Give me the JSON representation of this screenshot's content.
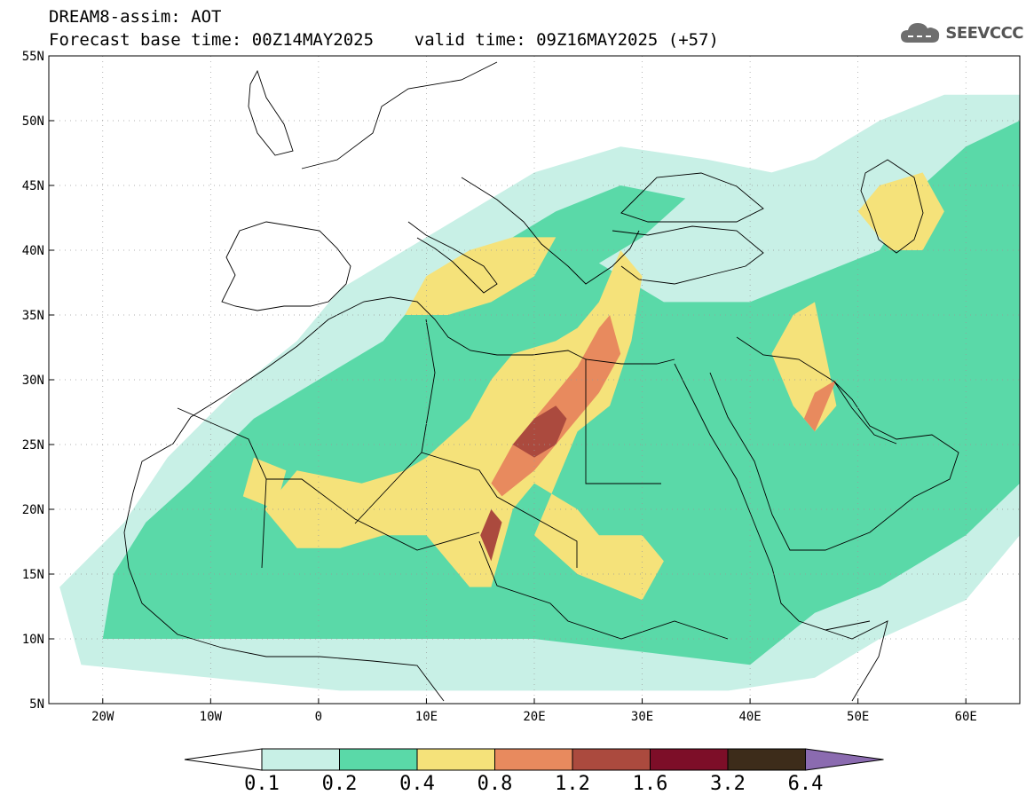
{
  "header": {
    "title_line1": "DREAM8-assim: AOT",
    "title_line2": "Forecast base time: 00Z14MAY2025    valid time: 09Z16MAY2025 (+57)"
  },
  "logo": {
    "text": "SEEVCCC",
    "icon": "cloud-icon"
  },
  "map": {
    "projection": "lat-lon",
    "lon_range": [
      -25,
      65
    ],
    "lat_range": [
      5,
      55
    ],
    "grid": "dotted",
    "x_ticks": [
      {
        "lon": -20,
        "label": "20W"
      },
      {
        "lon": -10,
        "label": "10W"
      },
      {
        "lon": 0,
        "label": "0"
      },
      {
        "lon": 10,
        "label": "10E"
      },
      {
        "lon": 20,
        "label": "20E"
      },
      {
        "lon": 30,
        "label": "30E"
      },
      {
        "lon": 40,
        "label": "40E"
      },
      {
        "lon": 50,
        "label": "50E"
      },
      {
        "lon": 60,
        "label": "60E"
      }
    ],
    "y_ticks": [
      {
        "lat": 5,
        "label": "5N"
      },
      {
        "lat": 10,
        "label": "10N"
      },
      {
        "lat": 15,
        "label": "15N"
      },
      {
        "lat": 20,
        "label": "20N"
      },
      {
        "lat": 25,
        "label": "25N"
      },
      {
        "lat": 30,
        "label": "30N"
      },
      {
        "lat": 35,
        "label": "35N"
      },
      {
        "lat": 40,
        "label": "40N"
      },
      {
        "lat": 45,
        "label": "45N"
      },
      {
        "lat": 50,
        "label": "50N"
      },
      {
        "lat": 55,
        "label": "55N"
      }
    ],
    "field": "AOT",
    "dust_regions": [
      {
        "level": 1,
        "polygon": [
          [
            -22,
            8
          ],
          [
            -24,
            14
          ],
          [
            -18,
            19
          ],
          [
            -14,
            24
          ],
          [
            -8,
            29
          ],
          [
            -2,
            33
          ],
          [
            2,
            37
          ],
          [
            8,
            40
          ],
          [
            14,
            43
          ],
          [
            20,
            46
          ],
          [
            28,
            48
          ],
          [
            36,
            47
          ],
          [
            42,
            46
          ],
          [
            46,
            47
          ],
          [
            52,
            50
          ],
          [
            58,
            52
          ],
          [
            65,
            52
          ],
          [
            65,
            18
          ],
          [
            60,
            13
          ],
          [
            52,
            10
          ],
          [
            46,
            7
          ],
          [
            38,
            6
          ],
          [
            20,
            6
          ],
          [
            2,
            6
          ],
          [
            -10,
            7
          ]
        ]
      },
      {
        "level": 2,
        "polygon": [
          [
            -20,
            10
          ],
          [
            -19,
            15
          ],
          [
            -16,
            19
          ],
          [
            -12,
            22
          ],
          [
            -6,
            27
          ],
          [
            0,
            30
          ],
          [
            6,
            33
          ],
          [
            10,
            37
          ],
          [
            16,
            40
          ],
          [
            22,
            43
          ],
          [
            28,
            45
          ],
          [
            34,
            44
          ],
          [
            30,
            41
          ],
          [
            26,
            39
          ],
          [
            32,
            36
          ],
          [
            40,
            36
          ],
          [
            46,
            38
          ],
          [
            52,
            40
          ],
          [
            56,
            45
          ],
          [
            60,
            48
          ],
          [
            65,
            50
          ],
          [
            65,
            22
          ],
          [
            60,
            18
          ],
          [
            52,
            14
          ],
          [
            46,
            12
          ],
          [
            40,
            8
          ],
          [
            30,
            9
          ],
          [
            20,
            10
          ],
          [
            10,
            10
          ],
          [
            0,
            10
          ],
          [
            -12,
            10
          ]
        ]
      },
      {
        "level": 3,
        "polygon": [
          [
            -5,
            20
          ],
          [
            -2,
            23
          ],
          [
            4,
            22
          ],
          [
            8,
            23
          ],
          [
            10,
            24
          ],
          [
            14,
            27
          ],
          [
            16,
            30
          ],
          [
            18,
            32
          ],
          [
            22,
            33
          ],
          [
            24,
            34
          ],
          [
            26,
            36
          ],
          [
            28,
            40
          ],
          [
            30,
            38
          ],
          [
            29,
            33
          ],
          [
            27,
            28
          ],
          [
            24,
            26
          ],
          [
            22,
            22
          ],
          [
            20,
            18
          ],
          [
            24,
            15
          ],
          [
            30,
            13
          ],
          [
            32,
            16
          ],
          [
            30,
            18
          ],
          [
            26,
            18
          ],
          [
            24,
            20
          ],
          [
            20,
            22
          ],
          [
            18,
            20
          ],
          [
            16,
            14
          ],
          [
            14,
            14
          ],
          [
            10,
            18
          ],
          [
            6,
            18
          ],
          [
            2,
            17
          ],
          [
            -2,
            17
          ]
        ]
      },
      {
        "level": 3,
        "polygon": [
          [
            8,
            35
          ],
          [
            10,
            38
          ],
          [
            14,
            40
          ],
          [
            18,
            41
          ],
          [
            22,
            41
          ],
          [
            20,
            38
          ],
          [
            16,
            36
          ],
          [
            12,
            35
          ]
        ]
      },
      {
        "level": 3,
        "polygon": [
          [
            42,
            32
          ],
          [
            44,
            35
          ],
          [
            46,
            36
          ],
          [
            47,
            32
          ],
          [
            48,
            28
          ],
          [
            46,
            26
          ],
          [
            44,
            28
          ]
        ]
      },
      {
        "level": 3,
        "polygon": [
          [
            50,
            43
          ],
          [
            52,
            45
          ],
          [
            56,
            46
          ],
          [
            58,
            43
          ],
          [
            56,
            40
          ],
          [
            53,
            40
          ]
        ]
      },
      {
        "level": 3,
        "polygon": [
          [
            -7,
            21
          ],
          [
            -6,
            24
          ],
          [
            -3,
            23
          ],
          [
            -4,
            20
          ]
        ]
      },
      {
        "level": 4,
        "polygon": [
          [
            16,
            22
          ],
          [
            18,
            25
          ],
          [
            20,
            27
          ],
          [
            22,
            29
          ],
          [
            24,
            31
          ],
          [
            26,
            34
          ],
          [
            27,
            35
          ],
          [
            28,
            32
          ],
          [
            26,
            29
          ],
          [
            24,
            27
          ],
          [
            22,
            25
          ],
          [
            20,
            23
          ],
          [
            17,
            21
          ]
        ]
      },
      {
        "level": 4,
        "polygon": [
          [
            45,
            27
          ],
          [
            46,
            29
          ],
          [
            48,
            30
          ],
          [
            47,
            28
          ],
          [
            46,
            26
          ]
        ]
      },
      {
        "level": 5,
        "polygon": [
          [
            18,
            25
          ],
          [
            20,
            27
          ],
          [
            22,
            28
          ],
          [
            23,
            27
          ],
          [
            22,
            25
          ],
          [
            20,
            24
          ]
        ]
      },
      {
        "level": 5,
        "polygon": [
          [
            15,
            18
          ],
          [
            16,
            20
          ],
          [
            17,
            19
          ],
          [
            16,
            16
          ]
        ]
      }
    ]
  },
  "colorbar": {
    "colors": [
      "#c8f0e6",
      "#5ad9a8",
      "#f5e27a",
      "#e88a5e",
      "#ab4a3e",
      "#7d0e28",
      "#3d2c1a",
      "#8b6bb0"
    ],
    "labels": [
      "0.1",
      "0.2",
      "0.4",
      "0.8",
      "1.2",
      "1.6",
      "3.2",
      "6.4"
    ]
  }
}
